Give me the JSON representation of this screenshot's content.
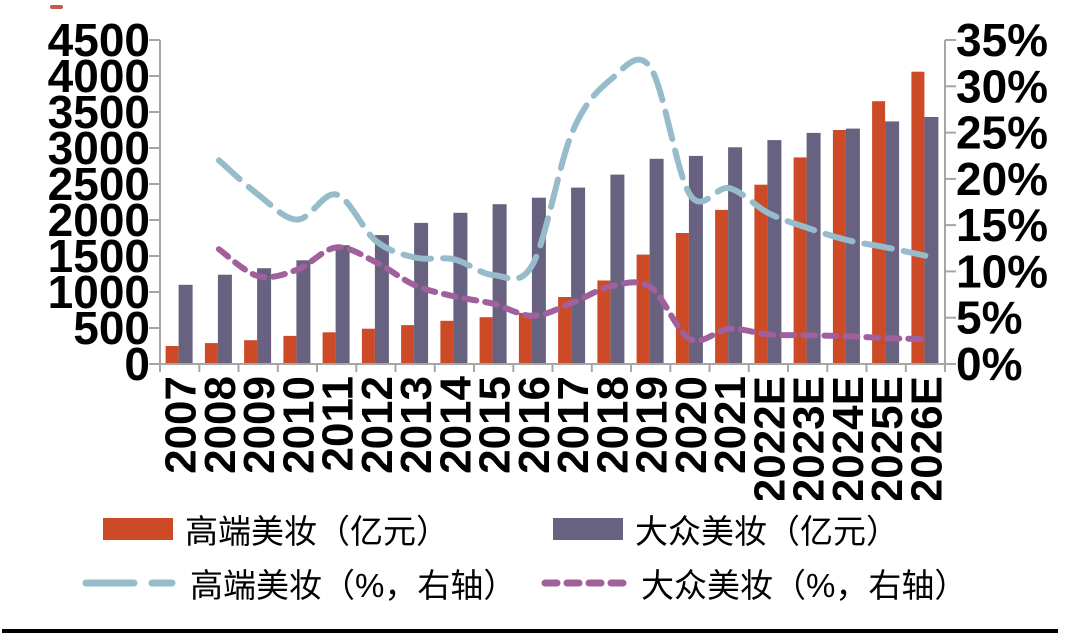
{
  "colors": {
    "premium_bar": "#CD4A27",
    "mass_bar": "#686180",
    "premium_line": "#96BCCB",
    "mass_line": "#A0609C",
    "axis": "#A6A6A6",
    "text": "#000000",
    "rule": "#000000"
  },
  "legend": {
    "items": [
      {
        "label": "高端美妆（亿元）",
        "swatch": "bar-premium"
      },
      {
        "label": "大众美妆（亿元）",
        "swatch": "bar-mass"
      },
      {
        "label": "高端美妆（%，右轴）",
        "swatch": "dash-long-blue"
      },
      {
        "label": "大众美妆（%，右轴）",
        "swatch": "dash-short-purple"
      }
    ]
  },
  "chart_data": {
    "type": "bar+line dual-axis combo",
    "grid": false,
    "legend_position": "bottom",
    "categories": [
      "2007",
      "2008",
      "2009",
      "2010",
      "2011",
      "2012",
      "2013",
      "2014",
      "2015",
      "2016",
      "2017",
      "2018",
      "2019",
      "2020",
      "2021",
      "2022E",
      "2023E",
      "2024E",
      "2025E",
      "2026E"
    ],
    "left_axis": {
      "min": 0,
      "max": 4500,
      "step": 500,
      "ticks": [
        "0",
        "500",
        "1000",
        "1500",
        "2000",
        "2500",
        "3000",
        "3500",
        "4000",
        "4500"
      ]
    },
    "right_axis": {
      "min": 0,
      "max": 35,
      "step": 5,
      "ticks": [
        "0%",
        "5%",
        "10%",
        "15%",
        "20%",
        "25%",
        "30%",
        "35%"
      ]
    },
    "series": [
      {
        "name": "高端美妆（亿元）",
        "key": "premium",
        "kind": "bar",
        "axis": "left",
        "color_key": "premium_bar",
        "values": [
          250,
          290,
          330,
          390,
          440,
          490,
          540,
          600,
          650,
          710,
          930,
          1160,
          1520,
          1820,
          2140,
          2490,
          2870,
          3250,
          3650,
          4060
        ]
      },
      {
        "name": "大众美妆（亿元）",
        "key": "mass",
        "kind": "bar",
        "axis": "left",
        "color_key": "mass_bar",
        "values": [
          1100,
          1240,
          1330,
          1440,
          1650,
          1790,
          1960,
          2100,
          2220,
          2310,
          2450,
          2630,
          2850,
          2890,
          3010,
          3110,
          3210,
          3270,
          3370,
          3430
        ]
      },
      {
        "name": "高端美妆（%，右轴）",
        "key": "premium-growth",
        "kind": "line",
        "axis": "right",
        "color_key": "premium_line",
        "dash": "long",
        "values": [
          null,
          22,
          18.3,
          15.6,
          18.3,
          13.3,
          11.5,
          11.3,
          9.6,
          10.8,
          25,
          30.8,
          32,
          18.3,
          19,
          16.3,
          14.7,
          13.4,
          12.6,
          11.7
        ]
      },
      {
        "name": "大众美妆（%，右轴）",
        "key": "mass-growth",
        "kind": "line",
        "axis": "right",
        "color_key": "mass_line",
        "dash": "short",
        "values": [
          null,
          12.4,
          9.5,
          10.2,
          12.6,
          11,
          8.5,
          7.3,
          6.5,
          5.2,
          6.6,
          8.4,
          8.3,
          2.7,
          3.8,
          3.2,
          3.1,
          3,
          2.8,
          2.7
        ]
      }
    ]
  }
}
